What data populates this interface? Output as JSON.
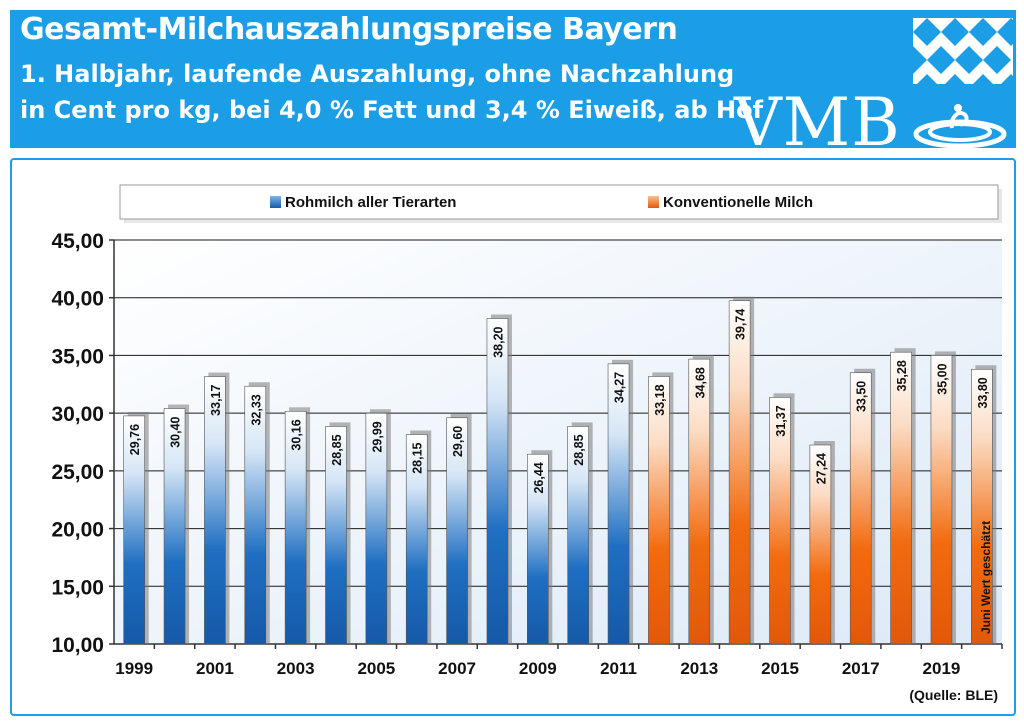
{
  "header": {
    "title": "Gesamt-Milchauszahlungspreise Bayern",
    "subtitle_line1": "1. Halbjahr,  laufende Auszahlung,  ohne Nachzahlung",
    "subtitle_line2": "in Cent pro kg, bei 4,0 % Fett und 3,4 % Eiweiß, ab Hof",
    "logo_text": "VMB",
    "colors": {
      "header_bg": "#1b9ee6",
      "flag_blue": "#1b9ee6"
    }
  },
  "chart_data": {
    "type": "bar",
    "title": "",
    "xlabel": "",
    "ylabel": "",
    "ylim": [
      10,
      45
    ],
    "yticks": [
      "10,00",
      "15,00",
      "20,00",
      "25,00",
      "30,00",
      "35,00",
      "40,00",
      "45,00"
    ],
    "ytick_values": [
      10,
      15,
      20,
      25,
      30,
      35,
      40,
      45
    ],
    "categories": [
      "1999",
      "2000",
      "2001",
      "2002",
      "2003",
      "2004",
      "2005",
      "2006",
      "2007",
      "2008",
      "2009",
      "2010",
      "2011",
      "2012",
      "2013",
      "2014",
      "2015",
      "2016",
      "2017",
      "2018",
      "2019",
      "2020"
    ],
    "xtick_labels": [
      "1999",
      "",
      "2001",
      "",
      "2003",
      "",
      "2005",
      "",
      "2007",
      "",
      "2009",
      "",
      "2011",
      "",
      "2013",
      "",
      "2015",
      "",
      "2017",
      "",
      "2019",
      ""
    ],
    "series": [
      {
        "name": "Rohmilch aller Tierarten",
        "color": "#1f6fc2",
        "values": [
          29.76,
          30.4,
          33.17,
          32.33,
          30.16,
          28.85,
          29.99,
          28.15,
          29.6,
          38.2,
          26.44,
          28.85,
          34.27,
          null,
          null,
          null,
          null,
          null,
          null,
          null,
          null,
          null
        ],
        "labels": [
          "29,76",
          "30,40",
          "33,17",
          "32,33",
          "30,16",
          "28,85",
          "29,99",
          "28,15",
          "29,60",
          "38,20",
          "26,44",
          "28,85",
          "34,27",
          "",
          "",
          "",
          "",
          "",
          "",
          "",
          "",
          ""
        ]
      },
      {
        "name": "Konventionelle Milch",
        "color": "#f26b0f",
        "values": [
          null,
          null,
          null,
          null,
          null,
          null,
          null,
          null,
          null,
          null,
          null,
          null,
          null,
          33.18,
          34.68,
          39.74,
          31.37,
          27.24,
          33.5,
          35.28,
          35.0,
          33.8
        ],
        "labels": [
          "",
          "",
          "",
          "",
          "",
          "",
          "",
          "",
          "",
          "",
          "",
          "",
          "",
          "33,18",
          "34,68",
          "39,74",
          "31,37",
          "27,24",
          "33,50",
          "35,28",
          "35,00",
          "33,80"
        ]
      }
    ],
    "legend_position": "top",
    "grid": true,
    "annotations": [
      "Juni Wert geschätzt"
    ],
    "source": "(Quelle: BLE)"
  }
}
